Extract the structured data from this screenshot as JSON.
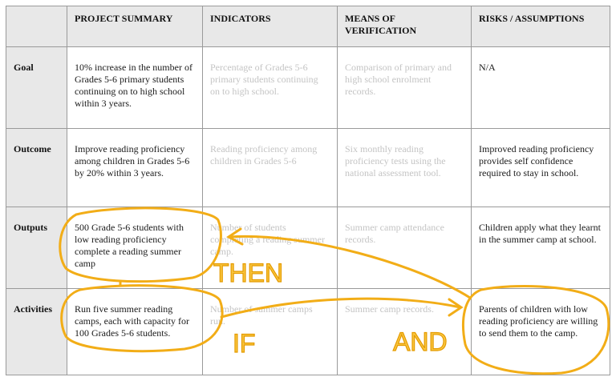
{
  "table": {
    "header": [
      "PROJECT SUMMARY",
      "INDICATORS",
      "MEANS OF VERIFICATION",
      "RISKS / ASSUMPTIONS"
    ],
    "rows": [
      {
        "label": "Goal",
        "cells": [
          "10% increase in the number of Grades 5-6 primary students continuing on to high school within 3 years.",
          "Percentage of Grades 5-6 primary students continuing on to high school.",
          "Comparison of primary and high school enrolment records.",
          "N/A"
        ]
      },
      {
        "label": "Outcome",
        "cells": [
          "Improve reading proficiency among children in Grades 5-6 by 20% within 3 years.",
          "Reading proficiency among children in Grades 5-6",
          "Six monthly reading proficiency tests using the national assessment tool.",
          "Improved reading proficiency provides self confidence required to stay in school."
        ]
      },
      {
        "label": "Outputs",
        "cells": [
          "500 Grade 5-6 students with low reading proficiency complete a reading summer camp",
          "Number of students completing a reading summer camp.",
          "Summer camp attendance records.",
          "Children apply what they learnt in the summer camp at school."
        ]
      },
      {
        "label": "Activities",
        "cells": [
          "Run five summer reading camps, each with capacity for 100 Grades 5-6 students.",
          "Number of summer camps run.",
          "Summer camp records.",
          "Parents of children with low reading proficiency are willing to send them to the camp."
        ]
      }
    ]
  },
  "annotations": {
    "then": "THEN",
    "if": "IF",
    "and": "AND"
  }
}
